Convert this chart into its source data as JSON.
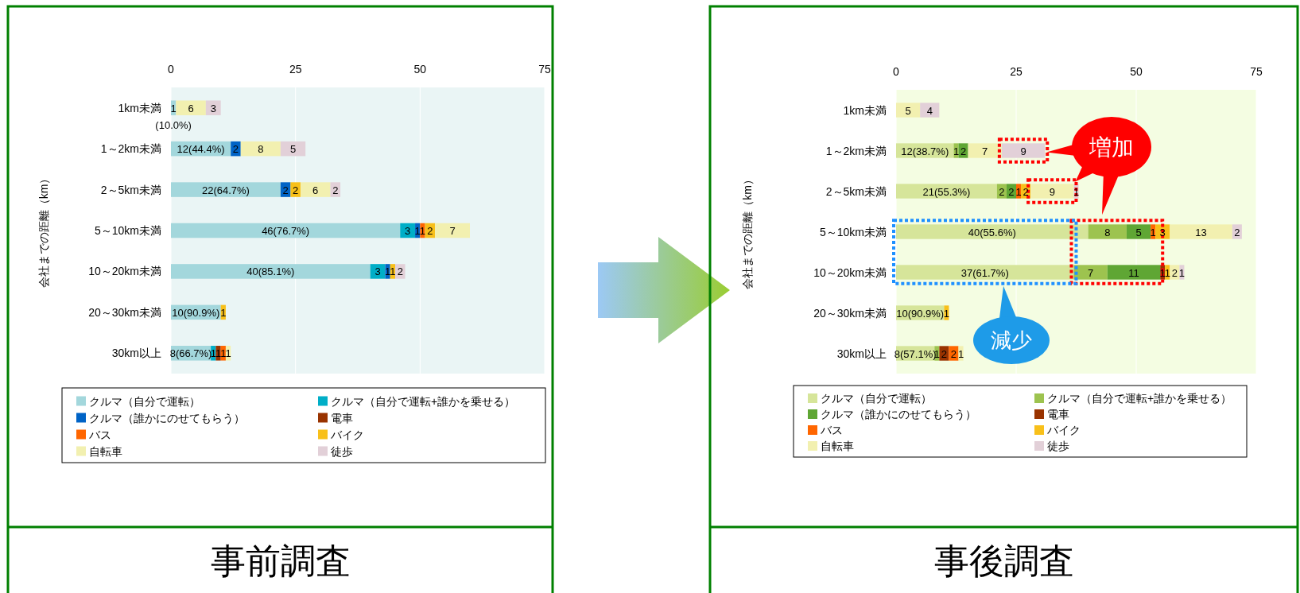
{
  "chart_data": [
    {
      "type": "bar",
      "orientation": "horizontal",
      "stacked": true,
      "title": "事前調査",
      "ylabel": "会社までの距離（km）",
      "categories": [
        "1km未満",
        "1～2km未満",
        "2～5km未満",
        "5～10km未満",
        "10～20km未満",
        "20～30km未満",
        "30km以上"
      ],
      "xlim": [
        0,
        75
      ],
      "xticks": [
        0,
        25,
        50,
        75
      ],
      "grid": "x",
      "legend": "bottom",
      "series": [
        {
          "name": "クルマ（自分で運転）",
          "color": "#a3d7dc",
          "values": [
            1,
            12,
            22,
            46,
            40,
            10,
            8
          ],
          "value_labels": [
            "1\n(10.0%)",
            "12(44.4%)",
            "22(64.7%)",
            "46(76.7%)",
            "40(85.1%)",
            "10(90.9%)",
            "8(66.7%)"
          ]
        },
        {
          "name": "クルマ（自分で運転+誰かを乗せる）",
          "color": "#00aec7",
          "values": [
            null,
            null,
            null,
            3,
            3,
            null,
            1
          ],
          "value_labels": [
            null,
            null,
            null,
            "3",
            "3",
            null,
            "1"
          ]
        },
        {
          "name": "クルマ（誰かにのせてもらう）",
          "color": "#0063c6",
          "values": [
            null,
            2,
            2,
            1,
            1,
            null,
            null
          ],
          "value_labels": [
            null,
            "2",
            "2",
            "1",
            "1",
            null,
            null
          ]
        },
        {
          "name": "電車",
          "color": "#993300",
          "values": [
            null,
            null,
            null,
            null,
            null,
            null,
            1
          ],
          "value_labels": [
            null,
            null,
            null,
            null,
            null,
            null,
            "1"
          ]
        },
        {
          "name": "バス",
          "color": "#ff6600",
          "values": [
            null,
            null,
            null,
            1,
            null,
            null,
            1
          ],
          "value_labels": [
            null,
            null,
            null,
            "1",
            null,
            null,
            "1"
          ]
        },
        {
          "name": "バイク",
          "color": "#f8c01a",
          "values": [
            null,
            null,
            2,
            2,
            1,
            1,
            null
          ],
          "value_labels": [
            null,
            null,
            "2",
            "2",
            "1",
            "1",
            null
          ]
        },
        {
          "name": "自転車",
          "color": "#f2f0b0",
          "values": [
            6,
            8,
            6,
            7,
            null,
            null,
            1
          ],
          "value_labels": [
            "6",
            "8",
            "6",
            "7",
            null,
            null,
            "1"
          ]
        },
        {
          "name": "徒歩",
          "color": "#e2d0d8",
          "values": [
            3,
            5,
            2,
            null,
            2,
            null,
            null
          ],
          "value_labels": [
            "3",
            "5",
            "2",
            null,
            "2",
            null,
            null
          ]
        }
      ]
    },
    {
      "type": "bar",
      "orientation": "horizontal",
      "stacked": true,
      "title": "事後調査",
      "ylabel": "会社までの距離（km）",
      "categories": [
        "1km未満",
        "1～2km未満",
        "2～5km未満",
        "5～10km未満",
        "10～20km未満",
        "20～30km未満",
        "30km以上"
      ],
      "xlim": [
        0,
        75
      ],
      "xticks": [
        0,
        25,
        50,
        75
      ],
      "grid": "x",
      "legend": "bottom",
      "annotations": [
        "増加",
        "減少"
      ],
      "series": [
        {
          "name": "クルマ（自分で運転）",
          "color": "#d6e59a",
          "values": [
            null,
            12,
            21,
            40,
            37,
            10,
            8
          ],
          "value_labels": [
            null,
            "12(38.7%)",
            "21(55.3%)",
            "40(55.6%)",
            "37(61.7%)",
            "10(90.9%)",
            "8(57.1%)"
          ]
        },
        {
          "name": "クルマ（自分で運転+誰かを乗せる）",
          "color": "#9dc34f",
          "values": [
            null,
            1,
            2,
            8,
            7,
            null,
            1
          ],
          "value_labels": [
            null,
            "1",
            "2",
            "8",
            "7",
            null,
            "1"
          ]
        },
        {
          "name": "クルマ（誰かにのせてもらう）",
          "color": "#5fa634",
          "values": [
            null,
            2,
            2,
            5,
            11,
            null,
            null
          ],
          "value_labels": [
            null,
            "2",
            "2",
            "5",
            "11",
            null,
            null
          ]
        },
        {
          "name": "電車",
          "color": "#993300",
          "values": [
            null,
            null,
            null,
            null,
            1,
            null,
            2
          ],
          "value_labels": [
            null,
            null,
            null,
            null,
            "1",
            null,
            "2"
          ]
        },
        {
          "name": "バス",
          "color": "#ff6600",
          "values": [
            null,
            null,
            1,
            1,
            null,
            null,
            2
          ],
          "value_labels": [
            null,
            null,
            "1",
            "1",
            null,
            null,
            "2"
          ]
        },
        {
          "name": "バイク",
          "color": "#f8c01a",
          "values": [
            null,
            null,
            2,
            3,
            1,
            1,
            null
          ],
          "value_labels": [
            null,
            null,
            "2",
            "3",
            "1",
            "1",
            null
          ]
        },
        {
          "name": "自転車",
          "color": "#f2f0b0",
          "values": [
            5,
            7,
            9,
            13,
            2,
            null,
            1
          ],
          "value_labels": [
            "5",
            "7",
            "9",
            "13",
            "2",
            null,
            "1"
          ]
        },
        {
          "name": "徒歩",
          "color": "#e2d0d8",
          "values": [
            4,
            9,
            1,
            2,
            1,
            null,
            null
          ],
          "value_labels": [
            "4",
            "9",
            "1",
            "2",
            "1",
            null,
            null
          ]
        }
      ]
    }
  ]
}
